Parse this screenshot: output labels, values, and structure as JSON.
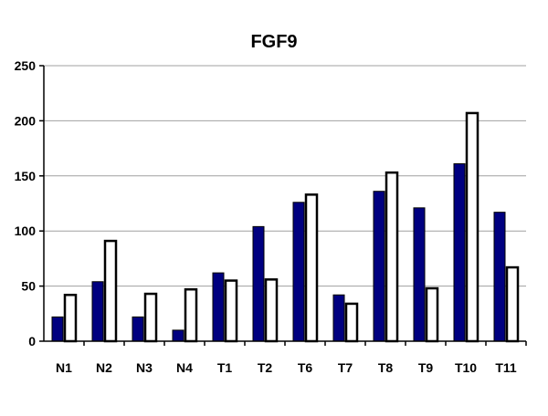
{
  "chart_data": {
    "type": "bar",
    "title": "FGF9",
    "xlabel": "",
    "ylabel": "",
    "ylim": [
      0,
      250
    ],
    "yticks": [
      0,
      50,
      100,
      150,
      200,
      250
    ],
    "grid": true,
    "legend": "none",
    "categories": [
      "N1",
      "N2",
      "N3",
      "N4",
      "T1",
      "T2",
      "T6",
      "T7",
      "T8",
      "T9",
      "T10",
      "T11"
    ],
    "series": [
      {
        "values": [
          22,
          54,
          22,
          10,
          62,
          104,
          126,
          42,
          136,
          121,
          161,
          117
        ],
        "color": "#000080",
        "stroke": "#000000"
      },
      {
        "values": [
          42,
          91,
          43,
          47,
          55,
          56,
          133,
          34,
          153,
          48,
          207,
          67
        ],
        "color": "#ffffff",
        "stroke": "#000000"
      }
    ]
  }
}
